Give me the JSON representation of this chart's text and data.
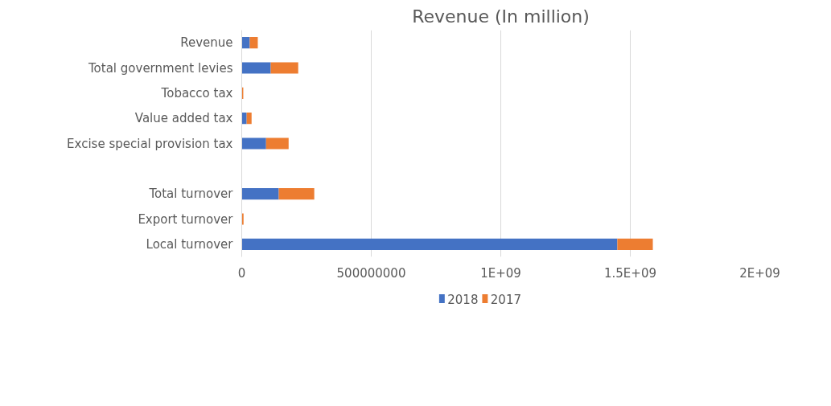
{
  "chart_data": {
    "type": "bar",
    "orientation": "horizontal",
    "stacked": true,
    "title": "Revenue (In million)",
    "categories": [
      "Revenue",
      "Total government levies",
      "Tobacco tax",
      "Value added tax",
      "Excise special provision tax",
      null,
      "Total turnover",
      "Export turnover",
      "Local turnover"
    ],
    "series": [
      {
        "name": "2018",
        "color": "#4472c4",
        "values": [
          31000000,
          112000000,
          null,
          19000000,
          94000000,
          null,
          143000000,
          null,
          1450000000
        ]
      },
      {
        "name": "2017",
        "color": "#ed7d31",
        "values": [
          31000000,
          106000000,
          6000000,
          19000000,
          87000000,
          null,
          137000000,
          7000000,
          137000000
        ]
      }
    ],
    "xlim": [
      0,
      2000000000
    ],
    "xticks": [
      0,
      500000000,
      {
        "value": 1000000000,
        "label": "1E+09"
      },
      {
        "value": 1500000000,
        "label": "1.5E+09"
      },
      {
        "value": 2000000000,
        "label": "2E+09"
      }
    ],
    "grid": "x",
    "legend": "bottom"
  }
}
